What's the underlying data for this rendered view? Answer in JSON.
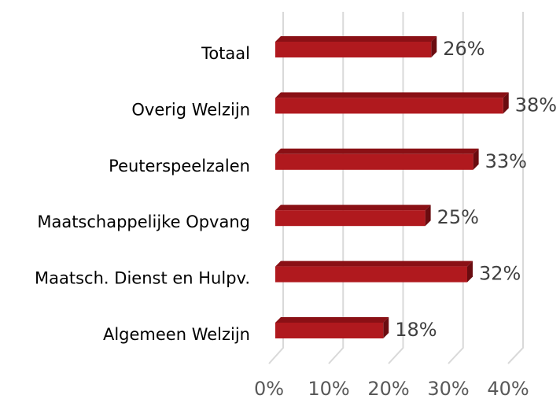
{
  "chart_data": {
    "type": "bar",
    "orientation": "horizontal",
    "categories": [
      "Totaal",
      "Overig Welzijn",
      "Peuterspeelzalen",
      "Maatschappelijke Opvang",
      "Maatsch. Dienst en Hulpv.",
      "Algemeen Welzijn"
    ],
    "values": [
      26,
      38,
      33,
      25,
      32,
      18
    ],
    "value_labels": [
      "26%",
      "38%",
      "33%",
      "25%",
      "32%",
      "18%"
    ],
    "color": "#b0191e",
    "xlim": [
      0,
      40
    ],
    "xticks": [
      {
        "value": 0,
        "label": "0%"
      },
      {
        "value": 10,
        "label": "10%"
      },
      {
        "value": 20,
        "label": "20%"
      },
      {
        "value": 30,
        "label": "30%"
      },
      {
        "value": 40,
        "label": "40%"
      }
    ],
    "grid": true
  }
}
